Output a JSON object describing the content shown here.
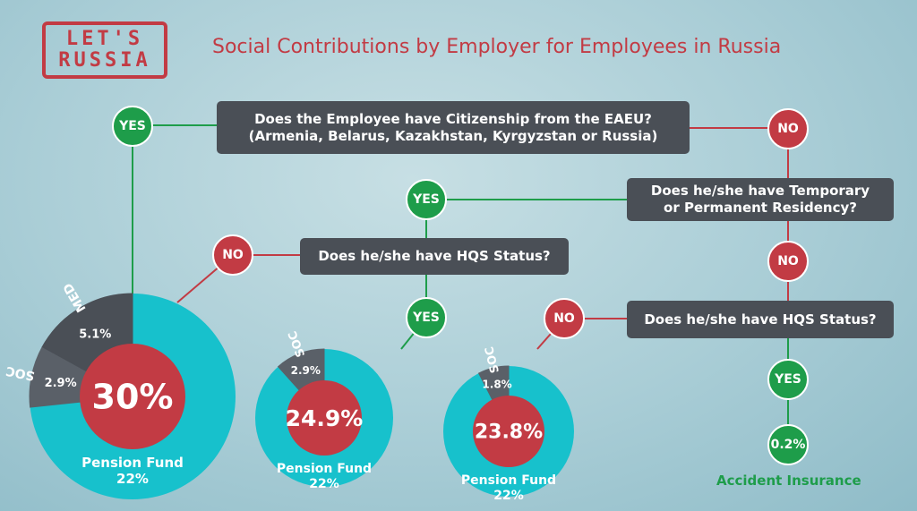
{
  "header": {
    "logo_line1": "LET'S",
    "logo_line2": "RUSSIA",
    "title": "Social Contributions by Employer for Employees in Russia"
  },
  "colors": {
    "red": "#c23b44",
    "green": "#1e9d4a",
    "dark": "#4a4f56",
    "teal": "#17c1cc",
    "background": "#a9cdd6"
  },
  "questions": {
    "q1_line1": "Does the Employee have Citizenship from the EAEU?",
    "q1_line2": "(Armenia, Belarus, Kazakhstan, Kyrgyzstan or Russia)",
    "q2_line1": "Does he/she have Temporary",
    "q2_line2": "or Permanent Residency?",
    "q3": "Does he/she have HQS Status?",
    "q4": "Does he/she have HQS Status?"
  },
  "answers": {
    "yes": "YES",
    "no": "NO"
  },
  "accident": {
    "value": "0.2%",
    "label": "Accident Insurance"
  },
  "chart_data": [
    {
      "type": "pie",
      "center": "30%",
      "slices": [
        {
          "label": "Pension Fund",
          "value": 22,
          "display": "22%"
        },
        {
          "label": "SOC",
          "value": 2.9,
          "display": "2.9%"
        },
        {
          "label": "MED",
          "value": 5.1,
          "display": "5.1%"
        }
      ]
    },
    {
      "type": "pie",
      "center": "24.9%",
      "slices": [
        {
          "label": "Pension Fund",
          "value": 22,
          "display": "22%"
        },
        {
          "label": "SOC",
          "value": 2.9,
          "display": "2.9%"
        }
      ]
    },
    {
      "type": "pie",
      "center": "23.8%",
      "slices": [
        {
          "label": "Pension Fund",
          "value": 22,
          "display": "22%"
        },
        {
          "label": "SOC",
          "value": 1.8,
          "display": "1.8%"
        }
      ]
    }
  ]
}
